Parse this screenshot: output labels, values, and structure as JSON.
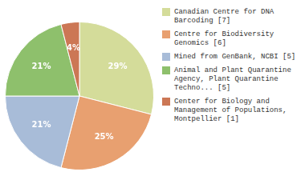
{
  "chart_data": {
    "type": "pie",
    "categories": [
      "Canadian Centre for DNA\nBarcoding [7]",
      "Centre for Biodiversity\nGenomics [6]",
      "Mined from GenBank, NCBI [5]",
      "Animal and Plant Quarantine\nAgency, Plant Quarantine\nTechno... [5]",
      "Center for Biology and\nManagement of Populations,\nMontpellier [1]"
    ],
    "values": [
      29,
      25,
      21,
      21,
      4
    ],
    "value_labels": [
      "29%",
      "25%",
      "21%",
      "21%",
      "4%"
    ],
    "colors": [
      "#d4dc9a",
      "#e8a070",
      "#a8bcd8",
      "#8ec06c",
      "#cc7755"
    ],
    "data_labels": true,
    "legend": "right"
  }
}
